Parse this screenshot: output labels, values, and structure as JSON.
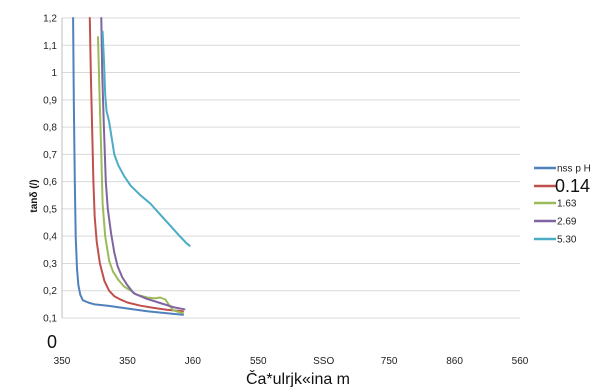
{
  "chart_data": {
    "type": "line",
    "ylabel": "tanδ (/)",
    "xlabel": "Ča*ulrjk«ina m",
    "origin_label": "0",
    "ylim": [
      0.1,
      1.2
    ],
    "y_ticks": [
      "0,1",
      "0,2",
      "0,3",
      "0,4",
      "0,5",
      "0,6",
      "0,7",
      "0,8",
      "0,9",
      "1",
      "1,1",
      "1,2"
    ],
    "x_ticks": [
      "350",
      "350",
      "J60",
      "550",
      "SSO",
      "750",
      "860",
      "560"
    ],
    "grid": "horizontal",
    "legend_position": "right",
    "series": [
      {
        "name": "nss p H",
        "color": "#4f81bd",
        "points": [
          [
            0.17,
            1.2
          ],
          [
            0.18,
            0.9
          ],
          [
            0.195,
            0.6
          ],
          [
            0.21,
            0.4
          ],
          [
            0.23,
            0.28
          ],
          [
            0.25,
            0.22
          ],
          [
            0.28,
            0.185
          ],
          [
            0.32,
            0.165
          ],
          [
            0.4,
            0.157
          ],
          [
            0.5,
            0.15
          ],
          [
            0.7,
            0.145
          ],
          [
            0.85,
            0.14
          ],
          [
            1.0,
            0.135
          ],
          [
            1.3,
            0.125
          ],
          [
            1.7,
            0.115
          ],
          [
            1.85,
            0.112
          ]
        ]
      },
      {
        "name": "0.14",
        "color": "#c0504d",
        "points": [
          [
            0.425,
            1.2
          ],
          [
            0.44,
            1.0
          ],
          [
            0.46,
            0.8
          ],
          [
            0.48,
            0.6
          ],
          [
            0.5,
            0.47
          ],
          [
            0.53,
            0.38
          ],
          [
            0.58,
            0.3
          ],
          [
            0.65,
            0.235
          ],
          [
            0.72,
            0.2
          ],
          [
            0.8,
            0.18
          ],
          [
            0.9,
            0.167
          ],
          [
            1.0,
            0.157
          ],
          [
            1.2,
            0.145
          ],
          [
            1.4,
            0.137
          ],
          [
            1.6,
            0.13
          ],
          [
            1.85,
            0.125
          ]
        ]
      },
      {
        "name": "1.63",
        "color": "#9bbb59",
        "points": [
          [
            0.55,
            1.13
          ],
          [
            0.57,
            0.95
          ],
          [
            0.6,
            0.7
          ],
          [
            0.62,
            0.52
          ],
          [
            0.66,
            0.4
          ],
          [
            0.72,
            0.31
          ],
          [
            0.78,
            0.27
          ],
          [
            0.86,
            0.24
          ],
          [
            0.95,
            0.215
          ],
          [
            1.05,
            0.2
          ],
          [
            1.15,
            0.185
          ],
          [
            1.3,
            0.175
          ],
          [
            1.42,
            0.172
          ],
          [
            1.5,
            0.175
          ],
          [
            1.58,
            0.168
          ],
          [
            1.63,
            0.15
          ],
          [
            1.7,
            0.128
          ],
          [
            1.85,
            0.118
          ]
        ]
      },
      {
        "name": "2.69",
        "color": "#8064a2",
        "points": [
          [
            0.6,
            1.2
          ],
          [
            0.615,
            1.0
          ],
          [
            0.64,
            0.8
          ],
          [
            0.67,
            0.6
          ],
          [
            0.7,
            0.5
          ],
          [
            0.75,
            0.41
          ],
          [
            0.8,
            0.34
          ],
          [
            0.85,
            0.29
          ],
          [
            0.92,
            0.25
          ],
          [
            1.0,
            0.22
          ],
          [
            1.05,
            0.205
          ],
          [
            1.1,
            0.19
          ],
          [
            1.2,
            0.18
          ],
          [
            1.3,
            0.17
          ],
          [
            1.5,
            0.155
          ],
          [
            1.7,
            0.14
          ],
          [
            1.87,
            0.132
          ]
        ]
      },
      {
        "name": "5.30",
        "color": "#4bacc6",
        "points": [
          [
            0.62,
            1.15
          ],
          [
            0.64,
            1.05
          ],
          [
            0.66,
            0.92
          ],
          [
            0.68,
            0.86
          ],
          [
            0.72,
            0.82
          ],
          [
            0.76,
            0.76
          ],
          [
            0.8,
            0.7
          ],
          [
            0.86,
            0.66
          ],
          [
            0.95,
            0.62
          ],
          [
            1.05,
            0.585
          ],
          [
            1.2,
            0.55
          ],
          [
            1.35,
            0.52
          ],
          [
            1.5,
            0.48
          ],
          [
            1.65,
            0.44
          ],
          [
            1.78,
            0.405
          ],
          [
            1.9,
            0.375
          ],
          [
            1.95,
            0.365
          ]
        ]
      }
    ]
  }
}
